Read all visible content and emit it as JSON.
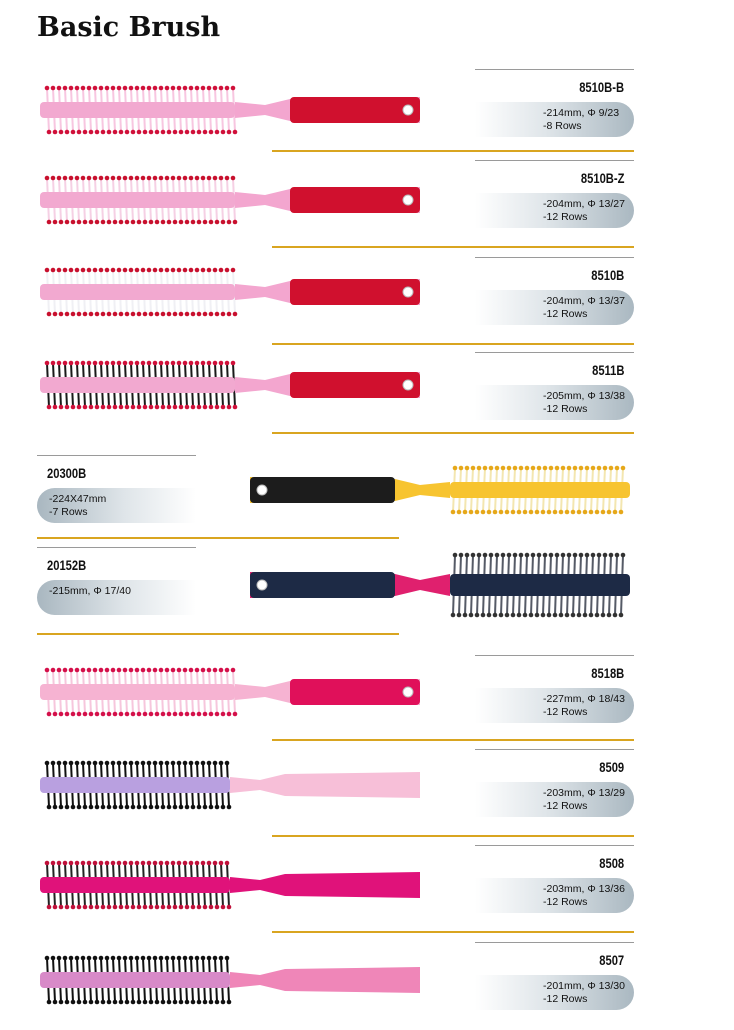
{
  "title": "Basic Brush",
  "products": [
    {
      "model": "8510B-B",
      "specs": [
        "-214mm, Φ 9/23",
        "-8 Rows"
      ],
      "side": "right",
      "colors": {
        "barrel": "#f2a9d0",
        "bristle": "#f7c6e0",
        "tip": "#d0103a",
        "handle": "#f3a6cf",
        "grip": "#d0102e"
      }
    },
    {
      "model": "8510B-Z",
      "specs": [
        "-204mm, Φ 13/27",
        "-12 Rows"
      ],
      "side": "right",
      "colors": {
        "barrel": "#f2a9d0",
        "bristle": "#f5d0e4",
        "tip": "#c8102e",
        "handle": "#f3a6cf",
        "grip": "#d0102e"
      }
    },
    {
      "model": "8510B",
      "specs": [
        "-204mm, Φ 13/37",
        "-12 Rows"
      ],
      "side": "right",
      "colors": {
        "barrel": "#f2a9d0",
        "bristle": "#f0f0f4",
        "tip": "#c8102e",
        "handle": "#f3a6cf",
        "grip": "#d0102e"
      }
    },
    {
      "model": "8511B",
      "specs": [
        "-205mm, Φ 13/38",
        "-12 Rows"
      ],
      "side": "right",
      "colors": {
        "barrel": "#f2a9d0",
        "bristle": "#1a1a1a",
        "tip": "#d0103a",
        "handle": "#f3a6cf",
        "grip": "#d0102e"
      }
    },
    {
      "model": "20300B",
      "specs": [
        "-224X47mm",
        "-7 Rows"
      ],
      "side": "left",
      "colors": {
        "barrel": "#f7c430",
        "bristle": "#f3e6b0",
        "tip": "#e6a81a",
        "handle": "#f7c430",
        "grip": "#1c1c1c"
      }
    },
    {
      "model": "20152B",
      "specs": [
        "-215mm, Φ 17/40"
      ],
      "side": "left",
      "colors": {
        "barrel": "#1d2a45",
        "bristle": "#555a66",
        "tip": "#333",
        "handle": "#e0206e",
        "grip": "#1d2a45"
      }
    },
    {
      "model": "8518B",
      "specs": [
        "-227mm, Φ 18/43",
        "-12 Rows"
      ],
      "side": "right",
      "colors": {
        "barrel": "#f6b3d2",
        "bristle": "#f6c6dc",
        "tip": "#d4104a",
        "handle": "#f6b3d2",
        "grip": "#e0105a"
      }
    },
    {
      "model": "8509",
      "specs": [
        "-203mm, Φ 13/29",
        "-12 Rows"
      ],
      "side": "right",
      "colors": {
        "barrel": "#b9a0e0",
        "bristle": "#111",
        "tip": "#111",
        "handle": "#f7bfd8",
        "grip": "#f7bfd8"
      }
    },
    {
      "model": "8508",
      "specs": [
        "-203mm, Φ 13/36",
        "-12 Rows"
      ],
      "side": "right",
      "colors": {
        "barrel": "#e0127a",
        "bristle": "#222",
        "tip": "#c0103a",
        "handle": "#e0127a",
        "grip": "#e0127a"
      }
    },
    {
      "model": "8507",
      "specs": [
        "-201mm, Φ 13/30",
        "-12 Rows"
      ],
      "side": "right",
      "colors": {
        "barrel": "#d88ac8",
        "bristle": "#111",
        "tip": "#111",
        "handle": "#ef86b8",
        "grip": "#ef86b8"
      }
    }
  ]
}
